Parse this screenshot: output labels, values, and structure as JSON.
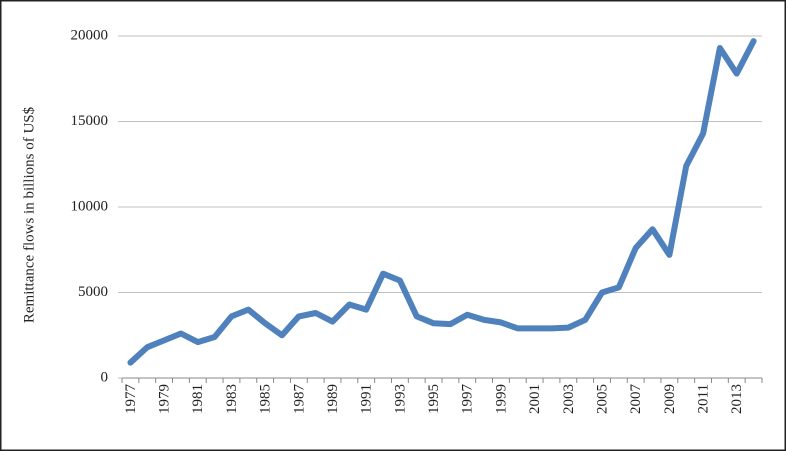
{
  "chart_data": {
    "type": "line",
    "y_label": "Remittance flows in billions of US$",
    "categories": [
      "1977",
      null,
      "1979",
      null,
      "1981",
      null,
      "1983",
      null,
      "1985",
      null,
      "1987",
      null,
      "1989",
      null,
      "1991",
      null,
      "1993",
      null,
      "1995",
      null,
      "1997",
      null,
      "1999",
      null,
      "2001",
      null,
      "2003",
      null,
      "2005",
      null,
      "2007",
      null,
      "2009",
      null,
      "2011",
      null,
      "2013",
      null
    ],
    "values": [
      900,
      1800,
      2200,
      2600,
      2100,
      2400,
      3600,
      4000,
      3200,
      2500,
      3600,
      3800,
      3300,
      4300,
      4000,
      6100,
      5700,
      3600,
      3200,
      3150,
      3700,
      3400,
      3250,
      2900,
      2900,
      2900,
      2950,
      3400,
      5000,
      5300,
      7600,
      8700,
      7200,
      12400,
      14300,
      19300,
      17800,
      19700
    ],
    "color": "#4f81bd",
    "ylim": [
      0,
      20000
    ],
    "yticks": [
      0,
      5000,
      10000,
      15000,
      20000
    ],
    "grid": true
  }
}
